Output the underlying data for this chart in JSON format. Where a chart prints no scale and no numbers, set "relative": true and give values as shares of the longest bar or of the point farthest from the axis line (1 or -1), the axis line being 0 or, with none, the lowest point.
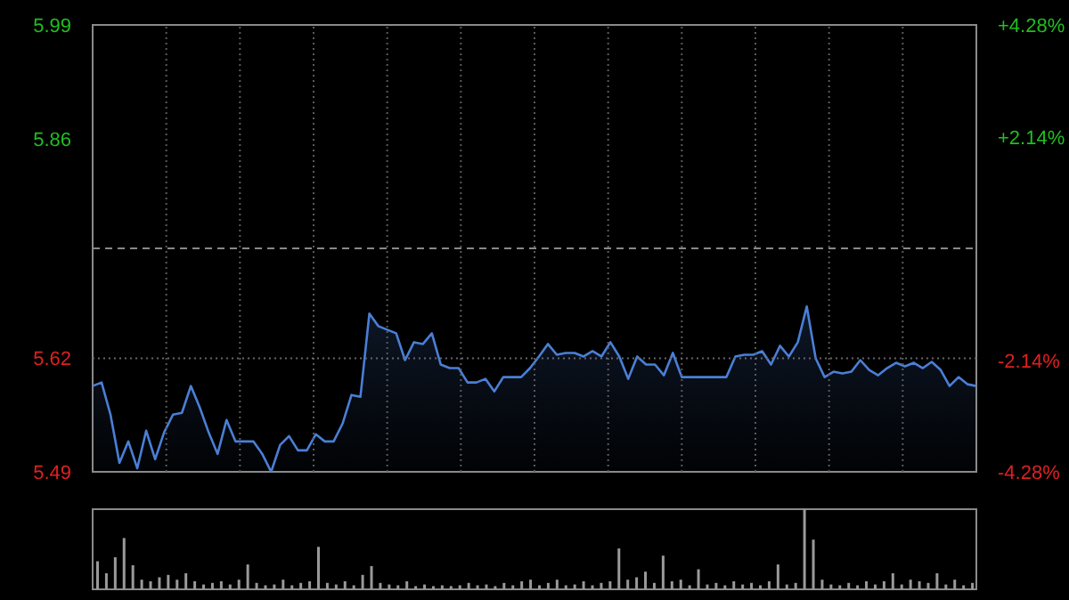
{
  "chart_data": [
    {
      "type": "area",
      "categories": [
        null,
        null,
        null,
        null,
        null,
        null,
        null,
        null,
        null,
        null,
        null,
        null,
        null,
        null,
        null,
        null,
        null,
        null,
        null,
        null,
        null,
        null,
        null,
        null,
        null,
        null,
        null,
        null,
        null,
        null,
        null,
        null,
        null,
        null,
        null,
        null,
        null,
        null,
        null,
        null,
        null,
        null,
        null,
        null,
        null,
        null,
        null,
        null,
        null,
        null,
        null,
        null,
        null,
        null,
        null,
        null,
        null,
        null,
        null,
        null,
        null,
        null,
        null,
        null,
        null,
        null,
        null,
        null,
        null,
        null,
        null,
        null,
        null,
        null,
        null,
        null,
        null,
        null,
        null,
        null,
        null,
        null,
        null,
        null,
        null,
        null,
        null,
        null,
        null,
        null,
        null,
        null,
        null,
        null,
        null,
        null,
        null,
        null,
        null,
        null
      ],
      "series": [
        {
          "color": "#4a7fd6",
          "values": [
            5.586,
            5.59,
            5.554,
            5.5,
            5.524,
            5.494,
            5.536,
            5.504,
            5.534,
            5.554,
            5.556,
            5.586,
            5.562,
            5.534,
            5.51,
            5.548,
            5.524,
            5.524,
            5.524,
            5.51,
            5.49,
            5.52,
            5.53,
            5.514,
            5.514,
            5.532,
            5.524,
            5.524,
            5.544,
            5.576,
            5.574,
            5.667,
            5.653,
            5.649,
            5.645,
            5.615,
            5.635,
            5.633,
            5.645,
            5.61,
            5.606,
            5.606,
            5.59,
            5.59,
            5.594,
            5.58,
            5.596,
            5.596,
            5.596,
            5.606,
            5.619,
            5.633,
            5.621,
            5.623,
            5.623,
            5.619,
            5.625,
            5.619,
            5.635,
            5.619,
            5.594,
            5.619,
            5.61,
            5.61,
            5.598,
            5.623,
            5.596,
            5.596,
            5.596,
            5.596,
            5.596,
            5.596,
            5.619,
            5.621,
            5.621,
            5.625,
            5.61,
            5.631,
            5.619,
            5.635,
            5.675,
            5.617,
            5.596,
            5.602,
            5.6,
            5.602,
            5.615,
            5.604,
            5.598,
            5.606,
            5.612,
            5.608,
            5.612,
            5.606,
            5.613,
            5.604,
            5.586,
            5.596,
            5.588,
            5.586
          ]
        }
      ],
      "ylim": [
        5.49,
        5.99
      ],
      "yticks": [
        5.49,
        {
          "value": 5.617,
          "label": "5.62"
        },
        {
          "value": 5.863,
          "label": "5.86"
        },
        5.99
      ],
      "y2lim": [
        -4.28,
        4.28
      ],
      "y2ticks": [
        {
          "value": -4.28,
          "label": "-4.28%"
        },
        {
          "value": -2.14,
          "label": "-2.14%"
        },
        {
          "value": 2.14,
          "label": "+2.14%"
        },
        {
          "value": 4.28,
          "label": "+4.28%"
        }
      ],
      "grid": "x",
      "ref_lines": [
        {
          "axis": "y",
          "value": 5.74,
          "line_style": "dashed",
          "color": "#888888"
        },
        {
          "axis": "y",
          "value": 5.617,
          "line_style": "dotted",
          "color": "#666666"
        }
      ],
      "line_style": "solid",
      "marker": "none"
    },
    {
      "type": "bar",
      "relative": true,
      "color": "#9a9a9a",
      "categories": [
        null,
        null,
        null,
        null,
        null,
        null,
        null,
        null,
        null,
        null,
        null,
        null,
        null,
        null,
        null,
        null,
        null,
        null,
        null,
        null,
        null,
        null,
        null,
        null,
        null,
        null,
        null,
        null,
        null,
        null,
        null,
        null,
        null,
        null,
        null,
        null,
        null,
        null,
        null,
        null,
        null,
        null,
        null,
        null,
        null,
        null,
        null,
        null,
        null,
        null,
        null,
        null,
        null,
        null,
        null,
        null,
        null,
        null,
        null,
        null,
        null,
        null,
        null,
        null,
        null,
        null,
        null,
        null,
        null,
        null,
        null,
        null,
        null,
        null,
        null,
        null,
        null,
        null,
        null,
        null,
        null,
        null,
        null,
        null,
        null,
        null,
        null,
        null,
        null,
        null,
        null,
        null,
        null,
        null,
        null,
        null,
        null,
        null,
        null,
        null
      ],
      "values": [
        0.35,
        0.2,
        0.4,
        0.64,
        0.3,
        0.12,
        0.1,
        0.15,
        0.18,
        0.12,
        0.2,
        0.1,
        0.06,
        0.08,
        0.1,
        0.06,
        0.12,
        0.31,
        0.08,
        0.05,
        0.06,
        0.12,
        0.05,
        0.08,
        0.1,
        0.53,
        0.08,
        0.06,
        0.1,
        0.05,
        0.18,
        0.29,
        0.08,
        0.06,
        0.05,
        0.1,
        0.04,
        0.06,
        0.04,
        0.05,
        0.04,
        0.05,
        0.08,
        0.05,
        0.06,
        0.04,
        0.08,
        0.05,
        0.1,
        0.12,
        0.05,
        0.08,
        0.12,
        0.05,
        0.06,
        0.1,
        0.05,
        0.08,
        0.1,
        0.51,
        0.12,
        0.15,
        0.22,
        0.08,
        0.42,
        0.1,
        0.12,
        0.05,
        0.25,
        0.06,
        0.08,
        0.05,
        0.1,
        0.06,
        0.08,
        0.05,
        0.1,
        0.31,
        0.06,
        0.08,
        1,
        0.62,
        0.12,
        0.06,
        0.05,
        0.08,
        0.05,
        0.1,
        0.06,
        0.1,
        0.2,
        0.06,
        0.12,
        0.1,
        0.08,
        0.2,
        0.06,
        0.12,
        0.05,
        0.08
      ]
    }
  ]
}
